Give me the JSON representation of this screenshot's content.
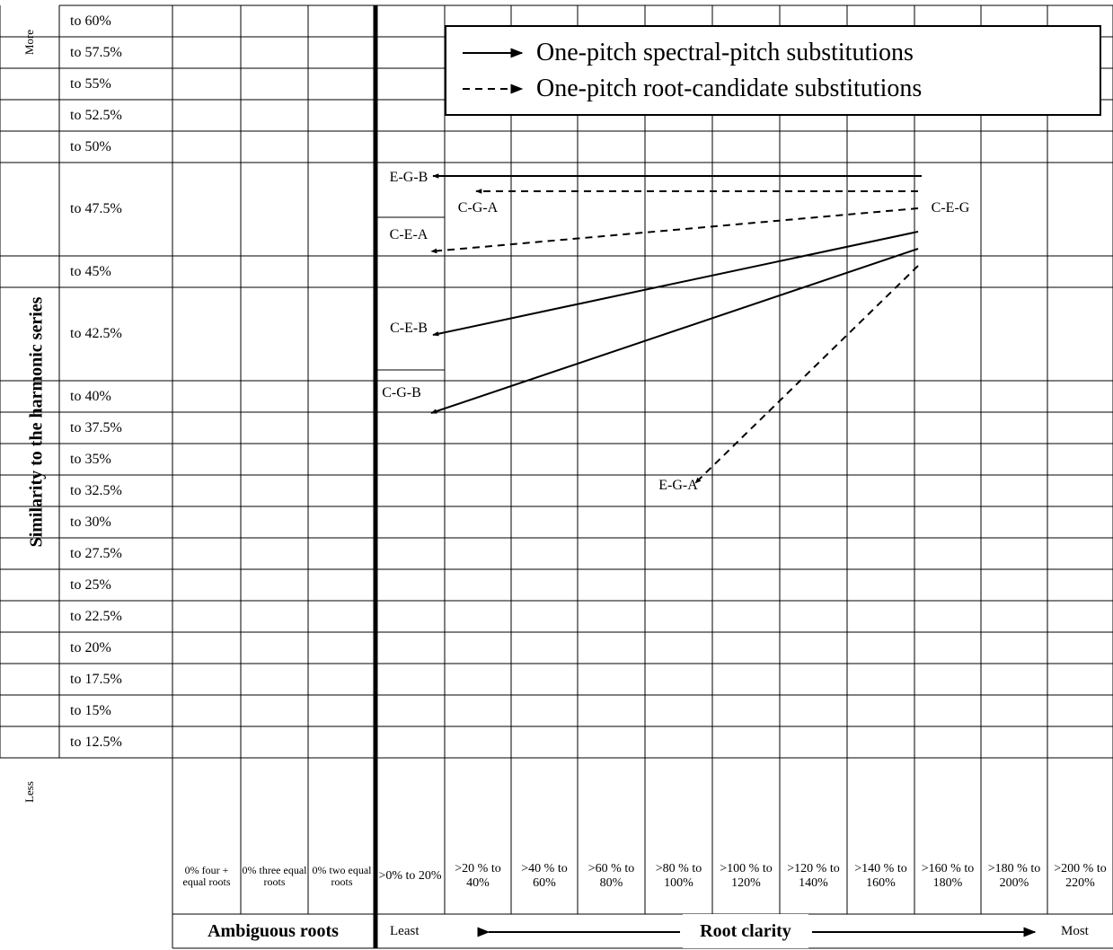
{
  "axis_title": "Similarity to the harmonic series",
  "side_labels": {
    "top": "More",
    "bottom": "Less"
  },
  "rows": [
    "to 60%",
    "to 57.5%",
    "to 55%",
    "to 52.5%",
    "to 50%",
    "to 47.5%",
    "to 45%",
    "to 42.5%",
    "to 40%",
    "to 37.5%",
    "to 35%",
    "to 32.5%",
    "to 30%",
    "to 27.5%",
    "to 25%",
    "to 22.5%",
    "to 20%",
    "to 17.5%",
    "to 15%",
    "to 12.5%"
  ],
  "ambiguous_columns": [
    "0% four + equal roots",
    "0% three equal roots",
    "0% two equal roots"
  ],
  "clarity_columns": [
    ">0% to 20%",
    ">20 % to 40%",
    ">40 % to 60%",
    ">60 % to 80%",
    ">80 % to 100%",
    ">100 % to 120%",
    ">120 % to 140%",
    ">140 % to 160%",
    ">160 % to 180%",
    ">180 % to 200%",
    ">200 % to 220%"
  ],
  "bottom": {
    "ambiguous_label": "Ambiguous roots",
    "least": "Least",
    "root_clarity": "Root clarity",
    "most": "Most"
  },
  "legend": {
    "solid": "One-pitch spectral-pitch substitutions",
    "dashed": "One-pitch root-candidate substitutions"
  },
  "chords": {
    "ceg": "C-E-G",
    "egb": "E-G-B",
    "cga": "C-G-A",
    "cea": "C-E-A",
    "ceb": "C-E-B",
    "cgb": "C-G-B",
    "ega": "E-G-A"
  }
}
